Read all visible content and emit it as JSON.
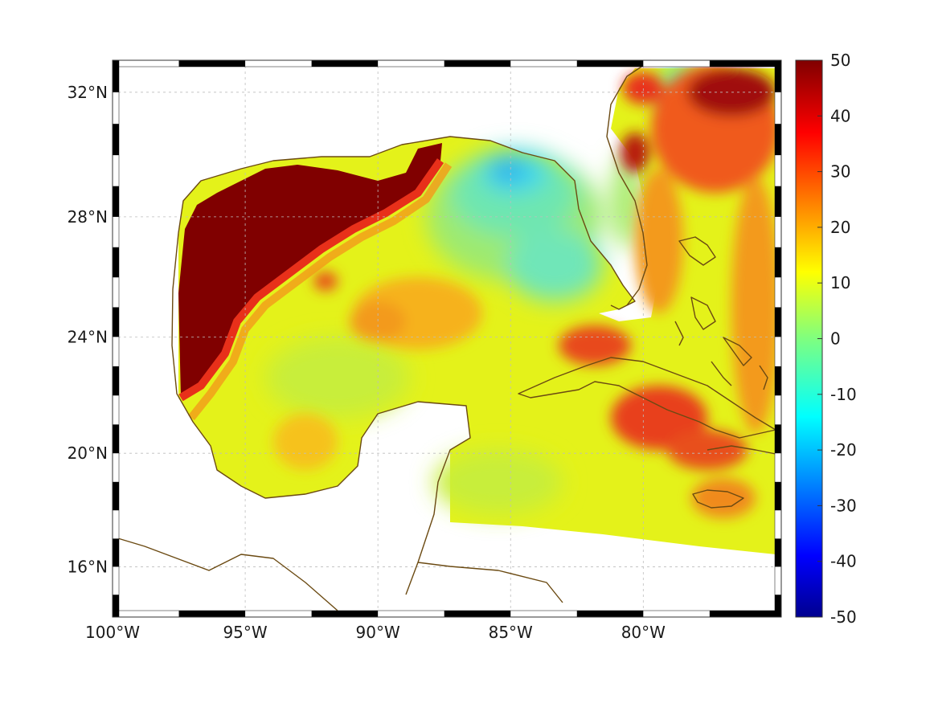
{
  "map": {
    "projection": "mercator",
    "lon_range": [
      -100,
      -74.8
    ],
    "lat_range": [
      14.2,
      33
    ],
    "longitude_ticks": [
      {
        "lon": -100,
        "label": "100°W"
      },
      {
        "lon": -95,
        "label": "95°W"
      },
      {
        "lon": -90,
        "label": "90°W"
      },
      {
        "lon": -85,
        "label": "85°W"
      },
      {
        "lon": -80,
        "label": "80°W"
      }
    ],
    "latitude_ticks": [
      {
        "lat": 32,
        "label": "32°N"
      },
      {
        "lat": 28,
        "label": "28°N"
      },
      {
        "lat": 24,
        "label": "24°N"
      },
      {
        "lat": 20,
        "label": "20°N"
      },
      {
        "lat": 16,
        "label": "16°N"
      }
    ],
    "grid": true,
    "coastline_color": "#6b4a12",
    "land_color": "#ffffff"
  },
  "colorbar": {
    "range": [
      -50,
      50
    ],
    "ticks": [
      "50",
      "40",
      "30",
      "20",
      "10",
      "0",
      "-10",
      "-20",
      "-30",
      "-40",
      "-50"
    ],
    "colormap": "jet"
  },
  "field": {
    "colors": {
      "saturated_high": "#800000",
      "red": "#e8301a",
      "orange": "#f39a1a",
      "yellow": "#f4f000",
      "yellow_green": "#c8ee3a",
      "green": "#8ee880",
      "cyan": "#3ee0f0",
      "blue": "#1e80e6"
    }
  }
}
